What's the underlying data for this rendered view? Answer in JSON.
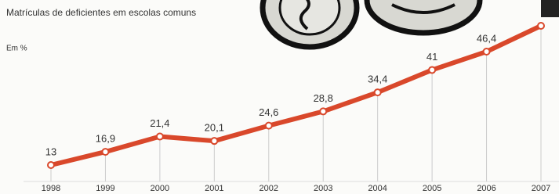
{
  "chart_data": {
    "type": "line",
    "title": "Matrículas de deficientes em escolas comuns",
    "subtitle": "Em %",
    "categories": [
      "1998",
      "1999",
      "2000",
      "2001",
      "2002",
      "2003",
      "2004",
      "2005",
      "2006",
      "2007"
    ],
    "values": [
      13,
      16.9,
      21.4,
      20.1,
      24.6,
      28.8,
      34.4,
      41,
      46.4,
      54
    ],
    "value_labels": [
      "13",
      "16,9",
      "21,4",
      "20,1",
      "24,6",
      "28,8",
      "34,4",
      "41",
      "46,4",
      null
    ],
    "color": "#d9482b"
  }
}
